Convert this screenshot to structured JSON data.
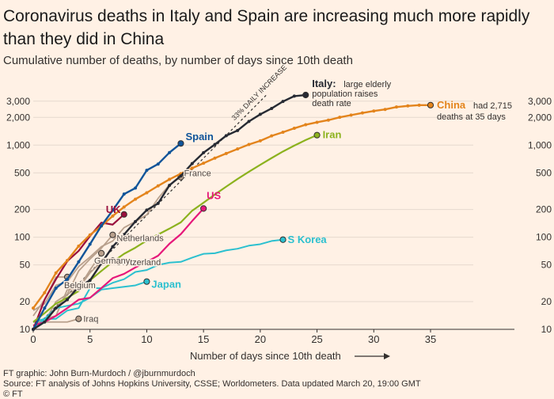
{
  "title": "Coronavirus deaths in Italy and Spain are increasing much more rapidly than they did in China",
  "subtitle": "Cumulative number of deaths, by number of days since 10th death",
  "footer": {
    "credit": "FT graphic: John Burn-Murdoch / @jburnmurdoch",
    "source": "Source: FT analysis of Johns Hopkins University, CSSE; Worldometers. Data updated March 20, 19:00 GMT",
    "copyright": "© FT"
  },
  "chart_data": {
    "type": "line",
    "xlabel": "Number of days since 10th death",
    "ylabel": "",
    "xlim": [
      0,
      35
    ],
    "ylim": [
      10,
      3500
    ],
    "y_scale": "log",
    "x_ticks": [
      0,
      5,
      10,
      15,
      20,
      25,
      30,
      35
    ],
    "y_ticks": [
      10,
      20,
      50,
      100,
      200,
      500,
      1000,
      2000,
      3000
    ],
    "y_tick_labels": [
      "10",
      "20",
      "50",
      "100",
      "200",
      "500",
      "1,000",
      "2,000",
      "3,000"
    ],
    "grid": true,
    "reference_line": {
      "label": "33% DAILY INCREASE",
      "start": 10,
      "rate": 1.33
    },
    "annotations": {
      "italy_text": [
        "large elderly",
        "population raises",
        "death rate"
      ],
      "china_text": [
        "had 2,715",
        "deaths at 35 days"
      ]
    },
    "colors": {
      "Italy": "#262A33",
      "Spain": "#0F5499",
      "China": "#E3841C",
      "Iran": "#8CB21E",
      "US": "#E6187A",
      "UK": "#990F3D",
      "S Korea": "#2BC0CF",
      "Japan": "#2BC0CF",
      "France": "#B8A08C",
      "Netherlands": "#B8A08C",
      "Switzerland": "#B8A08C",
      "Germany": "#B8A08C",
      "Belgium": "#B8A08C",
      "Iraq": "#B8A08C"
    },
    "series": [
      {
        "name": "Italy",
        "x": [
          0,
          1,
          2,
          3,
          4,
          5,
          6,
          7,
          8,
          9,
          10,
          11,
          12,
          13,
          14,
          15,
          16,
          17,
          18,
          19,
          20,
          21,
          22,
          23,
          24
        ],
        "values": [
          10,
          12,
          17,
          21,
          29,
          34,
          52,
          79,
          107,
          148,
          197,
          233,
          366,
          463,
          631,
          827,
          1016,
          1266,
          1441,
          1809,
          2158,
          2503,
          2978,
          3405,
          4032
        ]
      },
      {
        "name": "Spain",
        "x": [
          0,
          1,
          2,
          3,
          4,
          5,
          6,
          7,
          8,
          9,
          10,
          11,
          12,
          13
        ],
        "values": [
          10,
          17,
          28,
          35,
          54,
          84,
          133,
          196,
          294,
          342,
          533,
          623,
          830,
          1043
        ]
      },
      {
        "name": "China",
        "x": [
          0,
          1,
          2,
          3,
          4,
          5,
          6,
          7,
          8,
          9,
          10,
          11,
          12,
          13,
          14,
          15,
          16,
          17,
          18,
          19,
          20,
          21,
          22,
          23,
          24,
          25,
          26,
          27,
          28,
          29,
          30,
          31,
          32,
          33,
          34,
          35
        ],
        "values": [
          17,
          25,
          41,
          56,
          80,
          106,
          132,
          170,
          213,
          259,
          304,
          361,
          425,
          490,
          562,
          636,
          722,
          811,
          908,
          1016,
          1113,
          1259,
          1380,
          1523,
          1665,
          1770,
          1868,
          2004,
          2118,
          2236,
          2345,
          2442,
          2592,
          2663,
          2715,
          2715
        ]
      },
      {
        "name": "Iran",
        "x": [
          0,
          1,
          2,
          3,
          4,
          5,
          6,
          7,
          8,
          9,
          10,
          11,
          12,
          13,
          14,
          15,
          16,
          17,
          18,
          19,
          20,
          21,
          22,
          23,
          24,
          25
        ],
        "values": [
          12,
          15,
          19,
          22,
          26,
          34,
          43,
          54,
          66,
          77,
          92,
          107,
          124,
          145,
          194,
          237,
          291,
          354,
          429,
          514,
          611,
          724,
          853,
          988,
          1135,
          1284
        ]
      },
      {
        "name": "US",
        "x": [
          0,
          1,
          2,
          3,
          4,
          5,
          6,
          7,
          8,
          9,
          10,
          11,
          12,
          13,
          14,
          15
        ],
        "values": [
          11,
          12,
          14,
          17,
          21,
          22,
          28,
          36,
          40,
          47,
          54,
          63,
          85,
          108,
          150,
          205
        ]
      },
      {
        "name": "UK",
        "x": [
          0,
          1,
          2,
          3,
          4,
          5,
          6,
          7,
          8
        ],
        "values": [
          10,
          21,
          35,
          55,
          71,
          103,
          144,
          137,
          177
        ]
      },
      {
        "name": "S Korea",
        "x": [
          0,
          1,
          2,
          3,
          4,
          5,
          6,
          7,
          8,
          9,
          10,
          11,
          12,
          13,
          14,
          15,
          16,
          17,
          18,
          19,
          20,
          21,
          22
        ],
        "values": [
          12,
          13,
          13,
          16,
          17,
          28,
          28,
          32,
          35,
          42,
          44,
          50,
          53,
          54,
          60,
          66,
          67,
          72,
          75,
          81,
          84,
          91,
          94
        ]
      },
      {
        "name": "Japan",
        "x": [
          0,
          1,
          2,
          3,
          4,
          5,
          6,
          7,
          8,
          9,
          10
        ],
        "values": [
          10,
          13,
          17,
          18,
          19,
          22,
          27,
          28,
          29,
          30,
          33
        ]
      },
      {
        "name": "France",
        "x": [
          0,
          1,
          2,
          3,
          4,
          5,
          6,
          7,
          8,
          9,
          10,
          11,
          12,
          13
        ],
        "values": [
          16,
          19,
          30,
          33,
          48,
          61,
          79,
          91,
          127,
          148,
          175,
          264,
          372,
          450
        ]
      },
      {
        "name": "Netherlands",
        "x": [
          0,
          1,
          2,
          3,
          4,
          5,
          6,
          7
        ],
        "values": [
          10,
          12,
          20,
          24,
          43,
          58,
          76,
          106
        ]
      },
      {
        "name": "Switzerland",
        "x": [
          0,
          1,
          2,
          3,
          4,
          5,
          6,
          7
        ],
        "values": [
          11,
          13,
          14,
          27,
          28,
          41,
          54,
          56
        ]
      },
      {
        "name": "Germany",
        "x": [
          0,
          1,
          2,
          3,
          4,
          5,
          6
        ],
        "values": [
          12,
          12,
          17,
          24,
          28,
          44,
          67
        ]
      },
      {
        "name": "Belgium",
        "x": [
          0,
          1,
          2,
          3
        ],
        "values": [
          14,
          21,
          37,
          37
        ]
      },
      {
        "name": "Iraq",
        "x": [
          0,
          1,
          2,
          3,
          4
        ],
        "values": [
          11,
          12,
          12,
          12,
          13
        ]
      }
    ],
    "labels": [
      {
        "series": "Spain",
        "text": "Spain"
      },
      {
        "series": "Italy",
        "text": "Italy:"
      },
      {
        "series": "China",
        "text": "China"
      },
      {
        "series": "Iran",
        "text": "Iran"
      },
      {
        "series": "US",
        "text": "US"
      },
      {
        "series": "UK",
        "text": "UK"
      },
      {
        "series": "S Korea",
        "text": "S Korea"
      },
      {
        "series": "Japan",
        "text": "Japan"
      },
      {
        "series": "France",
        "text": "France"
      },
      {
        "series": "Netherlands",
        "text": "Netherlands"
      },
      {
        "series": "Switzerland",
        "text": "Switzerland"
      },
      {
        "series": "Germany",
        "text": "Germany"
      },
      {
        "series": "Belgium",
        "text": "Belgium"
      },
      {
        "series": "Iraq",
        "text": "Iraq"
      }
    ]
  }
}
